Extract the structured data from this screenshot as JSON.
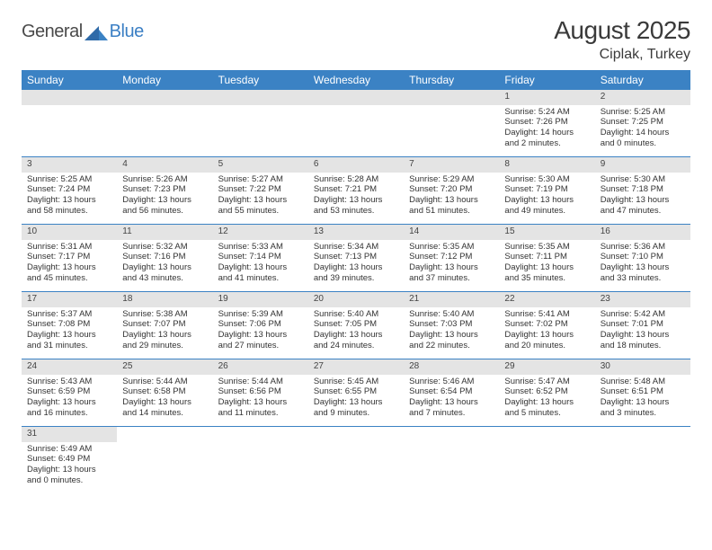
{
  "logo": {
    "general": "General",
    "blue": "Blue"
  },
  "title": {
    "month": "August 2025",
    "location": "Ciplak, Turkey"
  },
  "colors": {
    "header_bg": "#3b82c4",
    "header_fg": "#ffffff",
    "daynum_bg": "#e4e4e4",
    "rule": "#3b82c4",
    "text": "#333333"
  },
  "day_headers": [
    "Sunday",
    "Monday",
    "Tuesday",
    "Wednesday",
    "Thursday",
    "Friday",
    "Saturday"
  ],
  "weeks": [
    [
      null,
      null,
      null,
      null,
      null,
      {
        "n": "1",
        "sr": "Sunrise: 5:24 AM",
        "ss": "Sunset: 7:26 PM",
        "dl": "Daylight: 14 hours and 2 minutes."
      },
      {
        "n": "2",
        "sr": "Sunrise: 5:25 AM",
        "ss": "Sunset: 7:25 PM",
        "dl": "Daylight: 14 hours and 0 minutes."
      }
    ],
    [
      {
        "n": "3",
        "sr": "Sunrise: 5:25 AM",
        "ss": "Sunset: 7:24 PM",
        "dl": "Daylight: 13 hours and 58 minutes."
      },
      {
        "n": "4",
        "sr": "Sunrise: 5:26 AM",
        "ss": "Sunset: 7:23 PM",
        "dl": "Daylight: 13 hours and 56 minutes."
      },
      {
        "n": "5",
        "sr": "Sunrise: 5:27 AM",
        "ss": "Sunset: 7:22 PM",
        "dl": "Daylight: 13 hours and 55 minutes."
      },
      {
        "n": "6",
        "sr": "Sunrise: 5:28 AM",
        "ss": "Sunset: 7:21 PM",
        "dl": "Daylight: 13 hours and 53 minutes."
      },
      {
        "n": "7",
        "sr": "Sunrise: 5:29 AM",
        "ss": "Sunset: 7:20 PM",
        "dl": "Daylight: 13 hours and 51 minutes."
      },
      {
        "n": "8",
        "sr": "Sunrise: 5:30 AM",
        "ss": "Sunset: 7:19 PM",
        "dl": "Daylight: 13 hours and 49 minutes."
      },
      {
        "n": "9",
        "sr": "Sunrise: 5:30 AM",
        "ss": "Sunset: 7:18 PM",
        "dl": "Daylight: 13 hours and 47 minutes."
      }
    ],
    [
      {
        "n": "10",
        "sr": "Sunrise: 5:31 AM",
        "ss": "Sunset: 7:17 PM",
        "dl": "Daylight: 13 hours and 45 minutes."
      },
      {
        "n": "11",
        "sr": "Sunrise: 5:32 AM",
        "ss": "Sunset: 7:16 PM",
        "dl": "Daylight: 13 hours and 43 minutes."
      },
      {
        "n": "12",
        "sr": "Sunrise: 5:33 AM",
        "ss": "Sunset: 7:14 PM",
        "dl": "Daylight: 13 hours and 41 minutes."
      },
      {
        "n": "13",
        "sr": "Sunrise: 5:34 AM",
        "ss": "Sunset: 7:13 PM",
        "dl": "Daylight: 13 hours and 39 minutes."
      },
      {
        "n": "14",
        "sr": "Sunrise: 5:35 AM",
        "ss": "Sunset: 7:12 PM",
        "dl": "Daylight: 13 hours and 37 minutes."
      },
      {
        "n": "15",
        "sr": "Sunrise: 5:35 AM",
        "ss": "Sunset: 7:11 PM",
        "dl": "Daylight: 13 hours and 35 minutes."
      },
      {
        "n": "16",
        "sr": "Sunrise: 5:36 AM",
        "ss": "Sunset: 7:10 PM",
        "dl": "Daylight: 13 hours and 33 minutes."
      }
    ],
    [
      {
        "n": "17",
        "sr": "Sunrise: 5:37 AM",
        "ss": "Sunset: 7:08 PM",
        "dl": "Daylight: 13 hours and 31 minutes."
      },
      {
        "n": "18",
        "sr": "Sunrise: 5:38 AM",
        "ss": "Sunset: 7:07 PM",
        "dl": "Daylight: 13 hours and 29 minutes."
      },
      {
        "n": "19",
        "sr": "Sunrise: 5:39 AM",
        "ss": "Sunset: 7:06 PM",
        "dl": "Daylight: 13 hours and 27 minutes."
      },
      {
        "n": "20",
        "sr": "Sunrise: 5:40 AM",
        "ss": "Sunset: 7:05 PM",
        "dl": "Daylight: 13 hours and 24 minutes."
      },
      {
        "n": "21",
        "sr": "Sunrise: 5:40 AM",
        "ss": "Sunset: 7:03 PM",
        "dl": "Daylight: 13 hours and 22 minutes."
      },
      {
        "n": "22",
        "sr": "Sunrise: 5:41 AM",
        "ss": "Sunset: 7:02 PM",
        "dl": "Daylight: 13 hours and 20 minutes."
      },
      {
        "n": "23",
        "sr": "Sunrise: 5:42 AM",
        "ss": "Sunset: 7:01 PM",
        "dl": "Daylight: 13 hours and 18 minutes."
      }
    ],
    [
      {
        "n": "24",
        "sr": "Sunrise: 5:43 AM",
        "ss": "Sunset: 6:59 PM",
        "dl": "Daylight: 13 hours and 16 minutes."
      },
      {
        "n": "25",
        "sr": "Sunrise: 5:44 AM",
        "ss": "Sunset: 6:58 PM",
        "dl": "Daylight: 13 hours and 14 minutes."
      },
      {
        "n": "26",
        "sr": "Sunrise: 5:44 AM",
        "ss": "Sunset: 6:56 PM",
        "dl": "Daylight: 13 hours and 11 minutes."
      },
      {
        "n": "27",
        "sr": "Sunrise: 5:45 AM",
        "ss": "Sunset: 6:55 PM",
        "dl": "Daylight: 13 hours and 9 minutes."
      },
      {
        "n": "28",
        "sr": "Sunrise: 5:46 AM",
        "ss": "Sunset: 6:54 PM",
        "dl": "Daylight: 13 hours and 7 minutes."
      },
      {
        "n": "29",
        "sr": "Sunrise: 5:47 AM",
        "ss": "Sunset: 6:52 PM",
        "dl": "Daylight: 13 hours and 5 minutes."
      },
      {
        "n": "30",
        "sr": "Sunrise: 5:48 AM",
        "ss": "Sunset: 6:51 PM",
        "dl": "Daylight: 13 hours and 3 minutes."
      }
    ],
    [
      {
        "n": "31",
        "sr": "Sunrise: 5:49 AM",
        "ss": "Sunset: 6:49 PM",
        "dl": "Daylight: 13 hours and 0 minutes."
      },
      null,
      null,
      null,
      null,
      null,
      null
    ]
  ]
}
